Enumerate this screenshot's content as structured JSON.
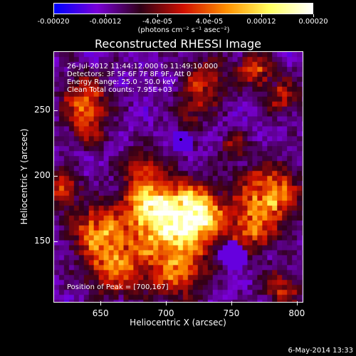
{
  "colorbar": {
    "ticks": [
      "-0.00020",
      "-0.00012",
      "-4.0e-05",
      "4.0e-05",
      "0.00012",
      "0.00020"
    ],
    "units_label": "(photons cm⁻² s⁻¹ asec⁻²)",
    "range": [
      -0.0002,
      0.0002
    ],
    "colors": [
      "#0000ff",
      "#7a00d8",
      "#300018",
      "#d01000",
      "#ff9000",
      "#ffff60",
      "#ffffff"
    ]
  },
  "plot": {
    "title": "Reconstructed RHESSI Image",
    "info_lines": [
      "26-Jul-2012 11:44:12.000 to 11:49:10.000",
      "Detectors: 3F 5F 6F 7F 8F 9F, Att 0",
      "Energy Range: 25.0 - 50.0 keV",
      "Clean    Total counts: 7.95E+03"
    ],
    "peak_label": "Position of Peak = [700,167]",
    "xlabel": "Heliocentric X (arcsec)",
    "ylabel": "Heliocentric Y (arcsec)",
    "x_ticks": [
      "650",
      "700",
      "750",
      "800"
    ],
    "y_ticks": [
      "150",
      "200",
      "250"
    ],
    "xlim": [
      614,
      805
    ],
    "ylim": [
      103,
      295
    ],
    "peak": [
      700,
      167
    ]
  },
  "footer": {
    "timestamp": "6-May-2014 13:33"
  },
  "chart_data": {
    "type": "heatmap",
    "title": "Reconstructed RHESSI Image",
    "xlabel": "Heliocentric X (arcsec)",
    "ylabel": "Heliocentric Y (arcsec)",
    "xlim": [
      614,
      805
    ],
    "ylim": [
      103,
      295
    ],
    "x_ticks": [
      650,
      700,
      750,
      800
    ],
    "y_ticks": [
      150,
      200,
      250
    ],
    "colorbar_range": [
      -0.0002,
      0.0002
    ],
    "peak_position": [
      700,
      167
    ]
  }
}
